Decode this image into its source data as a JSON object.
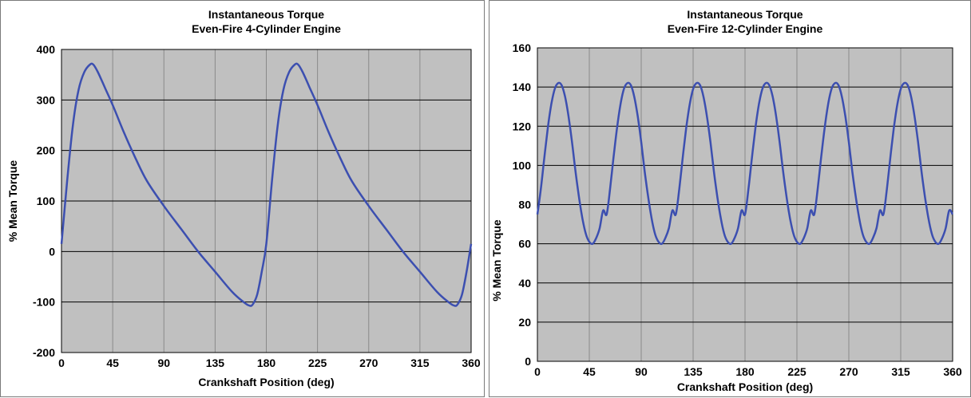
{
  "chart_data": [
    {
      "type": "line",
      "title": [
        "Instantaneous Torque",
        "Even-Fire 4-Cylinder Engine"
      ],
      "xlabel": "Crankshaft Position (deg)",
      "ylabel": "% Mean Torque",
      "xlim": [
        0,
        360
      ],
      "ylim": [
        -200,
        400
      ],
      "xticks": [
        0,
        45,
        90,
        135,
        180,
        225,
        270,
        315,
        360
      ],
      "yticks": [
        -200,
        -100,
        0,
        100,
        200,
        300,
        400
      ],
      "grid": true,
      "plot_background": "#c0c0c0",
      "line_color": "#3c4fb0",
      "series": [
        {
          "x": [
            0,
            5,
            10,
            15,
            20,
            25,
            28,
            32,
            38,
            45,
            55,
            65,
            75,
            90,
            105,
            120,
            135,
            150,
            160,
            165,
            168,
            172,
            176,
            180,
            185,
            190,
            195,
            200,
            205,
            208,
            212,
            218,
            225,
            235,
            245,
            255,
            270,
            285,
            300,
            315,
            330,
            340,
            345,
            348,
            352,
            356,
            360
          ],
          "y": [
            15,
            140,
            250,
            320,
            355,
            370,
            370,
            355,
            325,
            290,
            235,
            185,
            140,
            90,
            45,
            0,
            -40,
            -80,
            -100,
            -107,
            -105,
            -85,
            -40,
            15,
            140,
            250,
            320,
            355,
            370,
            370,
            355,
            325,
            290,
            235,
            185,
            140,
            90,
            45,
            0,
            -40,
            -80,
            -100,
            -107,
            -105,
            -85,
            -40,
            15
          ]
        }
      ]
    },
    {
      "type": "line",
      "title": [
        "Instantaneous Torque",
        "Even-Fire 12-Cylinder Engine"
      ],
      "xlabel": "Crankshaft Position (deg)",
      "ylabel": "% Mean Torque",
      "xlim": [
        0,
        360
      ],
      "ylim": [
        0,
        160
      ],
      "xticks": [
        0,
        45,
        90,
        135,
        180,
        225,
        270,
        315,
        360
      ],
      "yticks": [
        0,
        20,
        40,
        60,
        80,
        100,
        120,
        140,
        160
      ],
      "grid": true,
      "plot_background": "#c0c0c0",
      "line_color": "#3c4fb0",
      "series": [
        {
          "x": [
            0,
            3,
            6,
            9,
            12,
            15,
            18,
            21,
            24,
            27,
            30,
            33,
            36,
            39,
            42,
            45,
            48,
            51,
            54,
            57,
            60,
            63,
            66,
            69,
            72,
            75,
            78,
            81,
            84,
            87,
            90,
            93,
            96,
            99,
            102,
            105,
            108,
            111,
            114,
            117,
            120,
            123,
            126,
            129,
            132,
            135,
            138,
            141,
            144,
            147,
            150,
            153,
            156,
            159,
            162,
            165,
            168,
            171,
            174,
            177,
            180,
            183,
            186,
            189,
            192,
            195,
            198,
            201,
            204,
            207,
            210,
            213,
            216,
            219,
            222,
            225,
            228,
            231,
            234,
            237,
            240,
            243,
            246,
            249,
            252,
            255,
            258,
            261,
            264,
            267,
            270,
            273,
            276,
            279,
            282,
            285,
            288,
            291,
            294,
            297,
            300,
            303,
            306,
            309,
            312,
            315,
            318,
            321,
            324,
            327,
            330,
            333,
            336,
            339,
            342,
            345,
            348,
            351,
            354,
            357,
            360
          ],
          "y": [
            75,
            88,
            104,
            119,
            131,
            139,
            142,
            141,
            135,
            125,
            112,
            97,
            84,
            73,
            65,
            61,
            60,
            63,
            68,
            77,
            88,
            104,
            119,
            131,
            139,
            142,
            141,
            135,
            125,
            112,
            97,
            84,
            73,
            65,
            61,
            60,
            63,
            68,
            77,
            88,
            104,
            119,
            131,
            139,
            142,
            141,
            135,
            125,
            112,
            97,
            84,
            73,
            65,
            61,
            60,
            63,
            68,
            77,
            88,
            104,
            119,
            131,
            139,
            142,
            141,
            135,
            125,
            112,
            97,
            84,
            73,
            65,
            61,
            60,
            63,
            68,
            77,
            88,
            104,
            119,
            131,
            139,
            142,
            141,
            135,
            125,
            112,
            97,
            84,
            73,
            65,
            61,
            60,
            63,
            68,
            77,
            88,
            104,
            119,
            131,
            139,
            142,
            141,
            135,
            125,
            112,
            97,
            84,
            73,
            65,
            61,
            60,
            63,
            68,
            77,
            88,
            75,
            75,
            75,
            75,
            75
          ]
        }
      ]
    }
  ]
}
